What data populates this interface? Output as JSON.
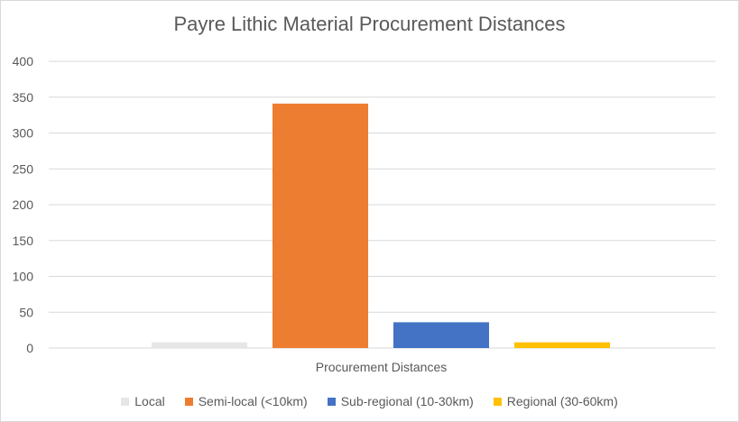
{
  "chart_data": {
    "type": "bar",
    "title": "Payre Lithic Material Procurement Distances",
    "xlabel": "Procurement Distances",
    "ylabel": "",
    "categories": [
      "Procurement Distances"
    ],
    "series": [
      {
        "name": "Local",
        "values": [
          8
        ],
        "color": "#e7e6e6"
      },
      {
        "name": "Semi-local (<10km)",
        "values": [
          341
        ],
        "color": "#ed7d31"
      },
      {
        "name": "Sub-regional (10-30km)",
        "values": [
          36
        ],
        "color": "#4472c4"
      },
      {
        "name": "Regional (30-60km)",
        "values": [
          8
        ],
        "color": "#ffc000"
      }
    ],
    "ylim": [
      0,
      400
    ],
    "yticks": [
      "0",
      "50",
      "100",
      "150",
      "200",
      "250",
      "300",
      "350",
      "400"
    ],
    "grid": true,
    "legend_position": "bottom"
  }
}
